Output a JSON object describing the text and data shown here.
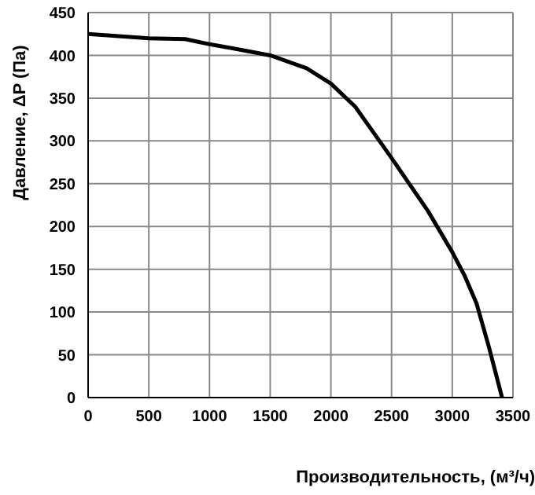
{
  "chart_data": {
    "type": "line",
    "xlabel": "Производительность, (м³/ч)",
    "ylabel": "Давление, ΔP (Па)",
    "x": [
      0,
      500,
      800,
      1000,
      1200,
      1500,
      1800,
      2000,
      2200,
      2500,
      2800,
      3000,
      3100,
      3200,
      3300,
      3410
    ],
    "series": [
      {
        "color": "#000000",
        "values": [
          425,
          420,
          419,
          413,
          408,
          400,
          385,
          367,
          340,
          280,
          218,
          170,
          143,
          110,
          60,
          0
        ]
      }
    ],
    "xlim": [
      0,
      3500
    ],
    "xticks": [
      0,
      500,
      1000,
      1500,
      2000,
      2500,
      3000,
      3500
    ],
    "ylim": [
      0,
      450
    ],
    "yticks": [
      0,
      50,
      100,
      150,
      200,
      250,
      300,
      350,
      400,
      450
    ],
    "grid": true,
    "marker": "none",
    "line_style": "solid",
    "legend": false
  }
}
